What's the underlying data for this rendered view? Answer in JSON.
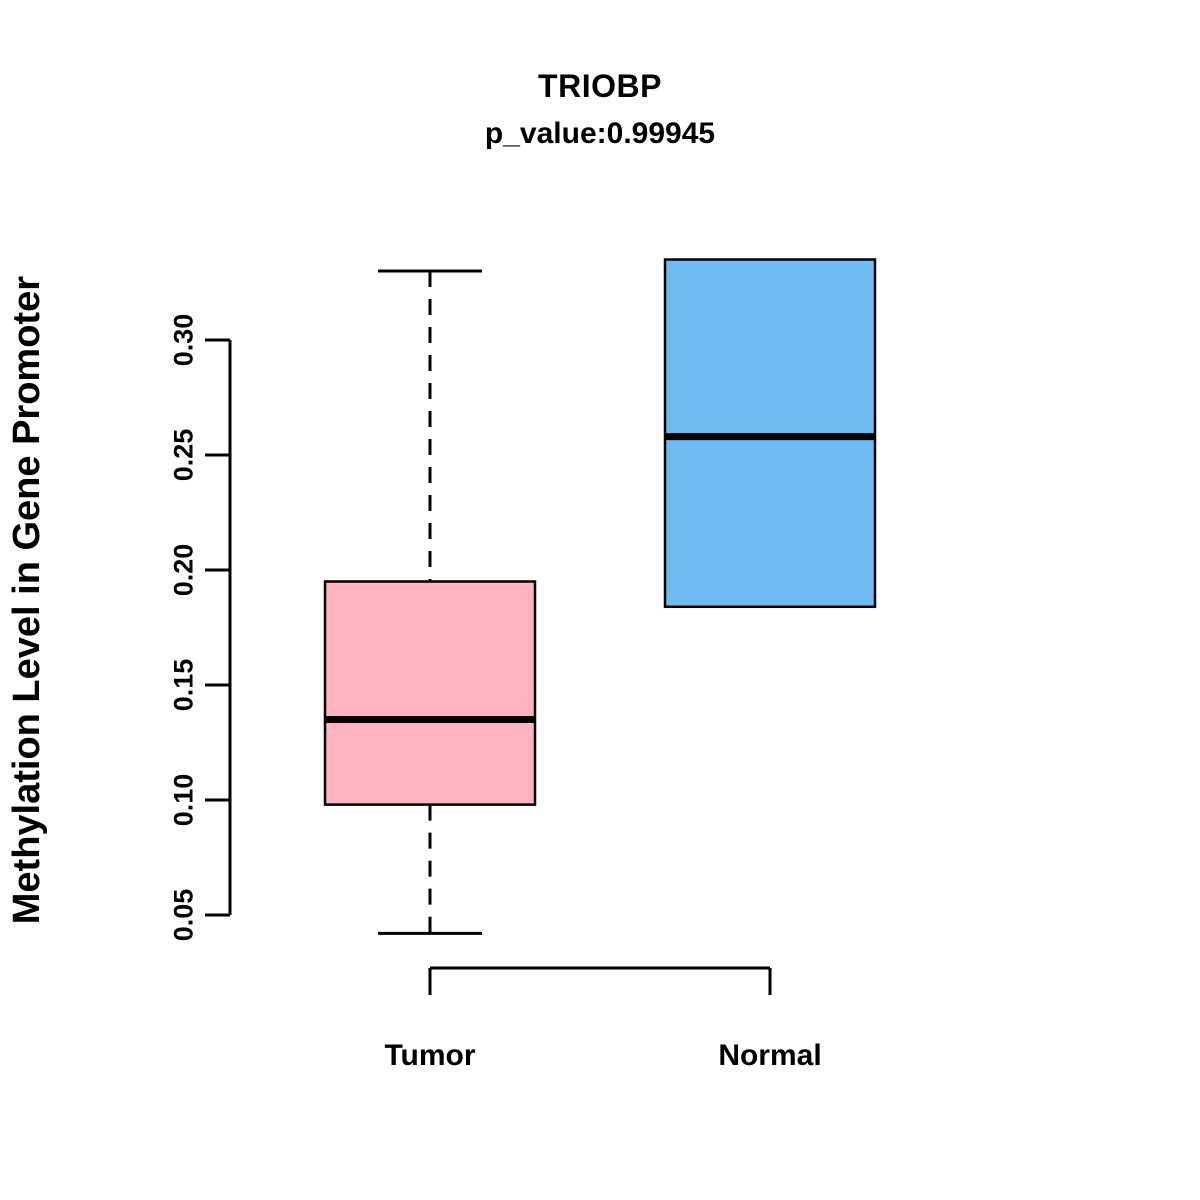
{
  "title": {
    "line1": "TRIOBP",
    "line2": "p_value:0.99945"
  },
  "chart_data": {
    "type": "boxplot",
    "title": "TRIOBP",
    "subtitle": "p_value:0.99945",
    "ylabel": "Methylation Level in Gene Promoter",
    "xlabel": "",
    "categories": [
      "Tumor",
      "Normal"
    ],
    "series": [
      {
        "name": "Tumor",
        "min": 0.042,
        "q1": 0.098,
        "median": 0.135,
        "q3": 0.195,
        "max": 0.33,
        "color": "#FFB3C1"
      },
      {
        "name": "Normal",
        "min": 0.184,
        "q1": 0.184,
        "median": 0.258,
        "q3": 0.335,
        "max": 0.335,
        "color": "#6FBCF2"
      }
    ],
    "yticks": [
      0.05,
      0.1,
      0.15,
      0.2,
      0.25,
      0.3
    ],
    "ylim": [
      0.04,
      0.34
    ],
    "grid": false,
    "legend": "none"
  }
}
